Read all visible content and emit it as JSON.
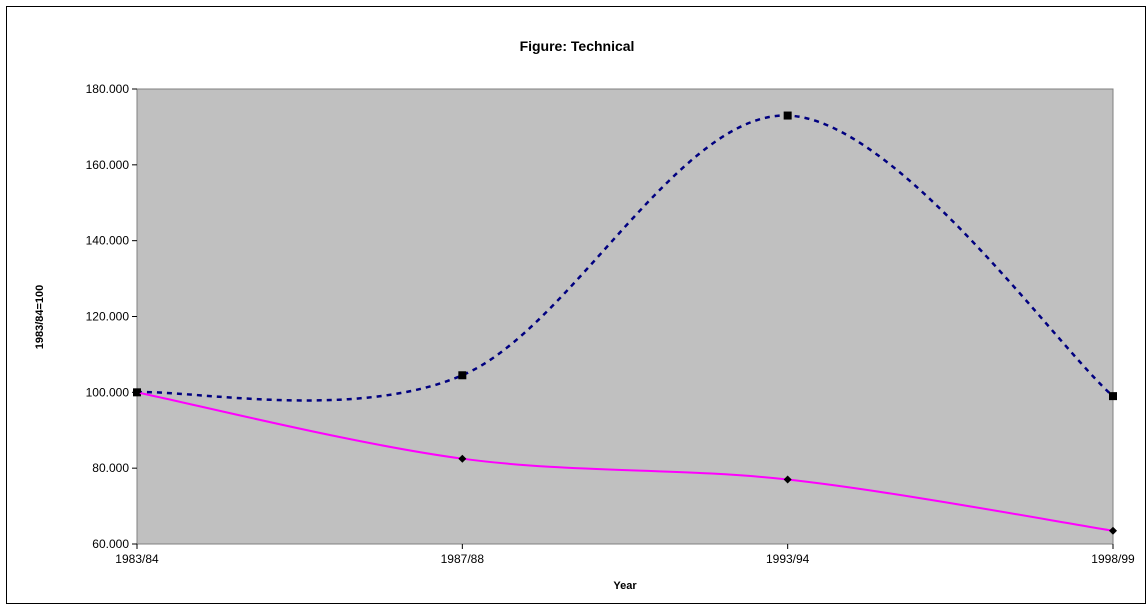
{
  "chart_data": {
    "type": "line",
    "title": "Figure:  Technical",
    "xlabel": "Year",
    "ylabel": "1983/84=100",
    "categories": [
      "1983/84",
      "1987/88",
      "1993/94",
      "1998/99"
    ],
    "ylim": [
      60,
      180
    ],
    "yticks": [
      60,
      80,
      100,
      120,
      140,
      160,
      180
    ],
    "ytick_labels": [
      "60.000",
      "80.000",
      "100.000",
      "120.000",
      "140.000",
      "160.000",
      "180.000"
    ],
    "grid": false,
    "legend": "none",
    "plot_background": "#c0c0c0",
    "series": [
      {
        "values": [
          100.0,
          104.5,
          173.0,
          99.0
        ],
        "color": "#000080",
        "line_style": "dashed",
        "marker": "square",
        "smoothed": true
      },
      {
        "values": [
          100.0,
          82.5,
          77.0,
          63.5
        ],
        "color": "#ff00ff",
        "line_style": "solid",
        "marker": "diamond",
        "smoothed": true
      }
    ]
  }
}
